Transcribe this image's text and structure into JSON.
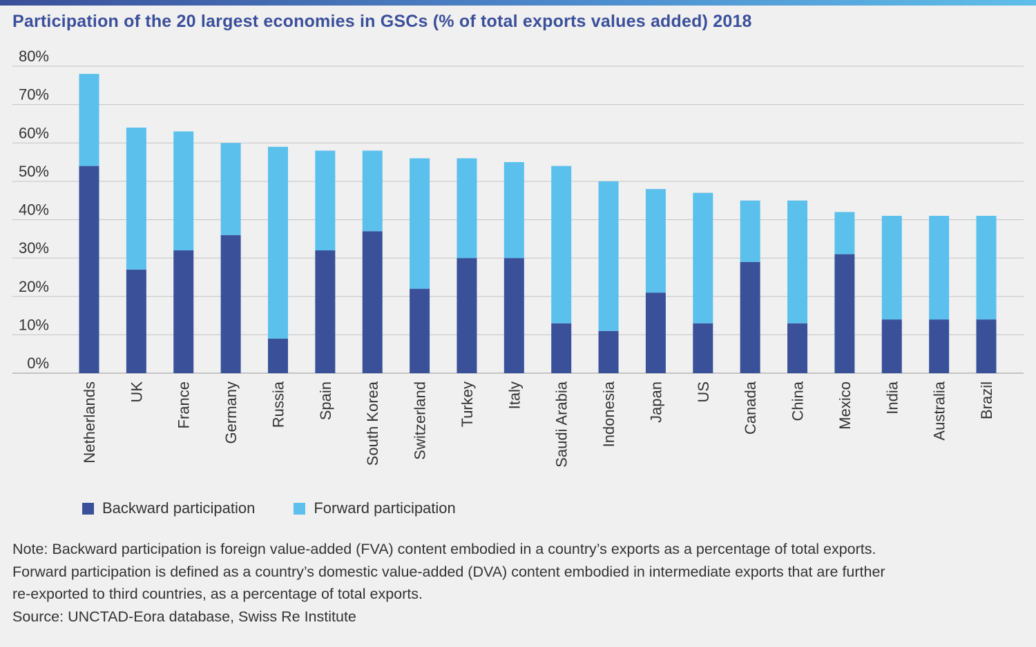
{
  "title": "Participation of the 20 largest economies in GSCs (% of total exports values added) 2018",
  "colors": {
    "backward": "#3a5199",
    "forward": "#5bc0eb",
    "title": "#3b4f9b"
  },
  "chart_data": {
    "type": "bar",
    "stacked": true,
    "title": "Participation of the 20 largest economies in GSCs (% of total exports values added) 2018",
    "categories": [
      "Netherlands",
      "UK",
      "France",
      "Germany",
      "Russia",
      "Spain",
      "South Korea",
      "Switzerland",
      "Turkey",
      "Italy",
      "Saudi Arabia",
      "Indonesia",
      "Japan",
      "US",
      "Canada",
      "China",
      "Mexico",
      "India",
      "Australia",
      "Brazil"
    ],
    "series": [
      {
        "name": "Backward participation",
        "values": [
          54,
          27,
          32,
          36,
          9,
          32,
          37,
          22,
          30,
          30,
          13,
          11,
          21,
          13,
          29,
          13,
          31,
          14,
          14,
          14
        ]
      },
      {
        "name": "Forward participation",
        "values": [
          24,
          37,
          31,
          24,
          50,
          26,
          21,
          34,
          26,
          25,
          41,
          39,
          27,
          34,
          16,
          32,
          11,
          27,
          27,
          27
        ]
      }
    ],
    "ylim": [
      0,
      80
    ],
    "yticks": [
      "0%",
      "10%",
      "20%",
      "30%",
      "40%",
      "50%",
      "60%",
      "70%",
      "80%"
    ],
    "grid": true,
    "legend": "bottom-left"
  },
  "notes": [
    "Note: Backward participation is foreign value-added (FVA) content embodied in a country’s exports as a percentage of total exports.",
    "Forward participation is defined as a country’s domestic value-added (DVA) content embodied in intermediate exports that are further",
    "re-exported to third countries, as a percentage of total exports.",
    "Source: UNCTAD-Eora database, Swiss Re Institute"
  ]
}
